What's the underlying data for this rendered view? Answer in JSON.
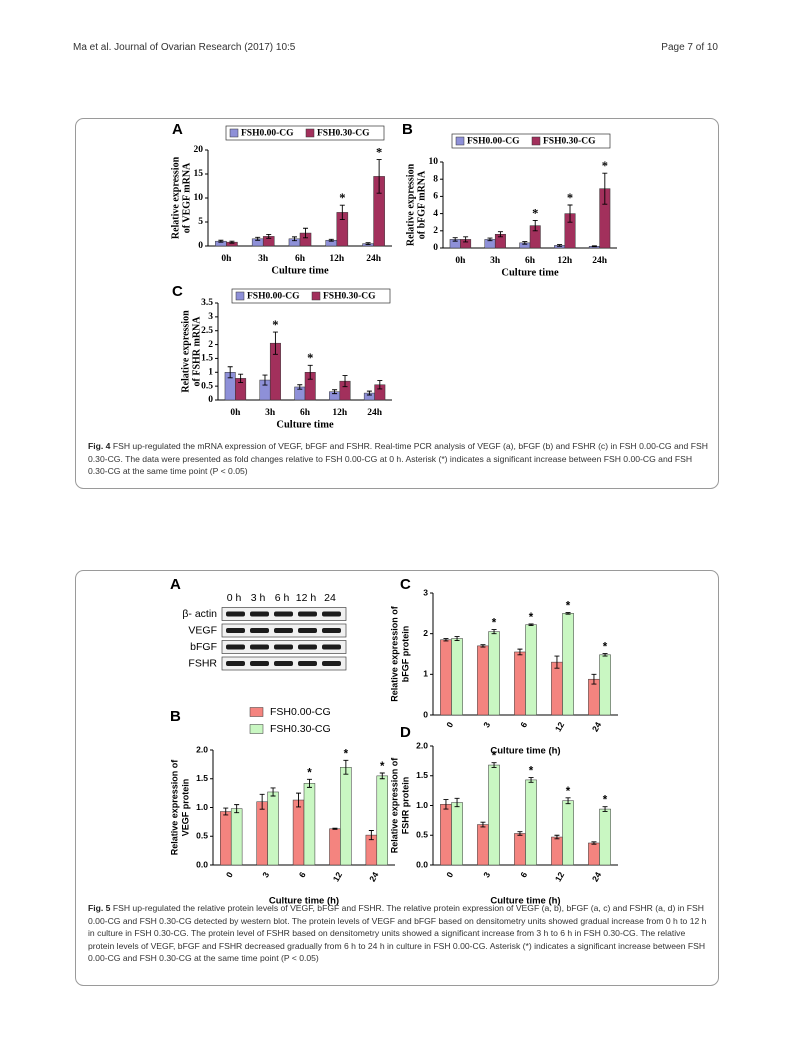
{
  "header": {
    "left": "Ma et al. Journal of Ovarian Research (2017) 10:5",
    "right": "Page 7 of 10"
  },
  "figures": [
    {
      "caption": {
        "label": "Fig. 4",
        "text": "FSH up-regulated the mRNA expression of VEGF, bFGF and FSHR. Real-time PCR analysis of VEGF (a), bFGF (b) and FSHR (c) in FSH 0.00-CG and FSH 0.30-CG. The data were presented as fold changes relative to FSH 0.00-CG at 0 h. Asterisk (*) indicates a significant increase between FSH 0.00-CG and FSH 0.30-CG at the same time point (P < 0.05)"
      },
      "charts": [
        {
          "type": "bar",
          "panel": "A",
          "ylabel": [
            "Relative expression",
            "of VEGF mRNA"
          ],
          "xlabel": "Culture time",
          "categories": [
            "0h",
            "3h",
            "6h",
            "12h",
            "24h"
          ],
          "ylim": [
            0,
            20
          ],
          "yticks": [
            0,
            5,
            10,
            15,
            20
          ],
          "series": [
            {
              "name": "FSH0.00-CG",
              "color": "#8e90d8",
              "values": [
                1.0,
                1.5,
                1.5,
                1.2,
                0.5
              ],
              "errors": [
                0.2,
                0.3,
                0.4,
                0.2,
                0.2
              ]
            },
            {
              "name": "FSH0.30-CG",
              "color": "#a2305c",
              "values": [
                0.8,
                2.0,
                2.7,
                7.0,
                14.5
              ],
              "errors": [
                0.2,
                0.4,
                1.0,
                1.5,
                3.5
              ]
            }
          ],
          "annotations": [
            {
              "text": "*",
              "category": "12h"
            },
            {
              "text": "*",
              "category": "24h"
            }
          ]
        },
        {
          "type": "bar",
          "panel": "B",
          "ylabel": [
            "Relative expression",
            "of bFGF mRNA"
          ],
          "xlabel": "Culture time",
          "categories": [
            "0h",
            "3h",
            "6h",
            "12h",
            "24h"
          ],
          "ylim": [
            0,
            10
          ],
          "yticks": [
            0,
            2,
            4,
            6,
            8,
            10
          ],
          "series": [
            {
              "name": "FSH0.00-CG",
              "color": "#8e90d8",
              "values": [
                1.0,
                1.0,
                0.6,
                0.3,
                0.2
              ],
              "errors": [
                0.2,
                0.15,
                0.15,
                0.1,
                0.05
              ]
            },
            {
              "name": "FSH0.30-CG",
              "color": "#a2305c",
              "values": [
                1.0,
                1.6,
                2.6,
                4.0,
                6.9
              ],
              "errors": [
                0.3,
                0.3,
                0.6,
                1.0,
                1.8
              ]
            }
          ],
          "annotations": [
            {
              "text": "*",
              "category": "6h"
            },
            {
              "text": "*",
              "category": "12h"
            },
            {
              "text": "*",
              "category": "24h"
            }
          ]
        },
        {
          "type": "bar",
          "panel": "C",
          "ylabel": [
            "Relative expression",
            "of FSHR mRNA"
          ],
          "xlabel": "Culture time",
          "categories": [
            "0h",
            "3h",
            "6h",
            "12h",
            "24h"
          ],
          "ylim": [
            0,
            3.5
          ],
          "yticks": [
            0,
            0.5,
            1,
            1.5,
            2,
            2.5,
            3,
            3.5
          ],
          "series": [
            {
              "name": "FSH0.00-CG",
              "color": "#8e90d8",
              "values": [
                1.0,
                0.72,
                0.47,
                0.3,
                0.25
              ],
              "errors": [
                0.2,
                0.18,
                0.08,
                0.07,
                0.07
              ]
            },
            {
              "name": "FSH0.30-CG",
              "color": "#a2305c",
              "values": [
                0.78,
                2.05,
                1.0,
                0.68,
                0.55
              ],
              "errors": [
                0.15,
                0.4,
                0.25,
                0.2,
                0.15
              ]
            }
          ],
          "annotations": [
            {
              "text": "*",
              "category": "3h"
            },
            {
              "text": "*",
              "category": "6h"
            }
          ]
        }
      ]
    },
    {
      "caption": {
        "label": "Fig. 5",
        "text": "FSH up-regulated the relative protein levels of VEGF, bFGF and FSHR. The relative protein expression of VEGF (a, b), bFGF (a, c) and FSHR (a, d) in FSH 0.00-CG and FSH 0.30-CG detected by western blot. The protein levels of VEGF and bFGF based on densitometry units showed gradual increase from 0 h to 12 h in culture in FSH 0.30-CG. The protein level of FSHR based on densitometry units showed a significant increase from 3 h to 6 h in FSH 0.30-CG. The relative protein levels of VEGF, bFGF and FSHR decreased gradually from 6 h to 24 h in culture in FSH 0.00-CG. Asterisk (*) indicates a significant increase between FSH 0.00-CG and FSH 0.30-CG at the same time point (P < 0.05)"
      },
      "blot": {
        "panel": "A",
        "lanes": [
          "0 h",
          "3 h",
          "6 h",
          "12 h",
          "24"
        ],
        "rows": [
          "β- actin",
          "VEGF",
          "bFGF",
          "FSHR"
        ]
      },
      "charts": [
        {
          "type": "bar",
          "panel": "B",
          "ylabel": [
            "Relative expression  of",
            "VEGF protein"
          ],
          "xlabel": "Culture time (h)",
          "categories": [
            "0",
            "3",
            "6",
            "12",
            "24"
          ],
          "ylim": [
            0,
            2
          ],
          "yticks": [
            {
              "value": 0,
              "label": "0.0"
            },
            {
              "value": 0.5,
              "label": "0.5"
            },
            {
              "value": 1,
              "label": "1.0"
            },
            {
              "value": 1.5,
              "label": "1.5"
            },
            {
              "value": 2,
              "label": "2.0"
            }
          ],
          "series": [
            {
              "name": "FSH0.00-CG",
              "color": "#f4847f",
              "values": [
                0.93,
                1.1,
                1.13,
                0.63,
                0.52
              ],
              "errors": [
                0.06,
                0.13,
                0.12,
                0.01,
                0.08
              ]
            },
            {
              "name": "FSH0.30-CG",
              "color": "#c9f7c2",
              "values": [
                0.98,
                1.27,
                1.42,
                1.7,
                1.55
              ],
              "errors": [
                0.07,
                0.07,
                0.07,
                0.12,
                0.05
              ]
            }
          ],
          "annotations": [
            {
              "text": "*",
              "category": "6"
            },
            {
              "text": "*",
              "category": "12"
            },
            {
              "text": "*",
              "category": "24"
            }
          ]
        },
        {
          "type": "bar",
          "panel": "C",
          "ylabel": [
            "Relative expression  of",
            "bFGF protein"
          ],
          "xlabel": "Culture time (h)",
          "categories": [
            "0",
            "3",
            "6",
            "12",
            "24"
          ],
          "ylim": [
            0,
            3
          ],
          "yticks": [
            0,
            1,
            2,
            3
          ],
          "series": [
            {
              "color": "#f4847f",
              "values": [
                1.85,
                1.7,
                1.55,
                1.3,
                0.88
              ],
              "errors": [
                0.03,
                0.03,
                0.07,
                0.15,
                0.12
              ]
            },
            {
              "color": "#c9f7c2",
              "values": [
                1.88,
                2.05,
                2.22,
                2.5,
                1.48
              ],
              "errors": [
                0.05,
                0.05,
                0.02,
                0.02,
                0.03
              ]
            }
          ],
          "annotations": [
            {
              "text": "*",
              "category": "3"
            },
            {
              "text": "*",
              "category": "6"
            },
            {
              "text": "*",
              "category": "12"
            },
            {
              "text": "*",
              "category": "24"
            }
          ]
        },
        {
          "type": "bar",
          "panel": "D",
          "ylabel": [
            "Relative expression  of",
            "FSHR protein"
          ],
          "xlabel": "Culture time (h)",
          "categories": [
            "0",
            "3",
            "6",
            "12",
            "24"
          ],
          "ylim": [
            0,
            2
          ],
          "yticks": [
            {
              "value": 0,
              "label": "0.0"
            },
            {
              "value": 0.5,
              "label": "0.5"
            },
            {
              "value": 1,
              "label": "1.0"
            },
            {
              "value": 1.5,
              "label": "1.5"
            },
            {
              "value": 2,
              "label": "2.0"
            }
          ],
          "series": [
            {
              "color": "#f4847f",
              "values": [
                1.02,
                0.68,
                0.53,
                0.47,
                0.37
              ],
              "errors": [
                0.08,
                0.04,
                0.03,
                0.03,
                0.02
              ]
            },
            {
              "color": "#c9f7c2",
              "values": [
                1.05,
                1.68,
                1.43,
                1.08,
                0.94
              ],
              "errors": [
                0.07,
                0.04,
                0.04,
                0.05,
                0.04
              ]
            }
          ],
          "annotations": [
            {
              "text": "*",
              "category": "3"
            },
            {
              "text": "*",
              "category": "6"
            },
            {
              "text": "*",
              "category": "12"
            },
            {
              "text": "*",
              "category": "24"
            }
          ]
        }
      ]
    }
  ]
}
